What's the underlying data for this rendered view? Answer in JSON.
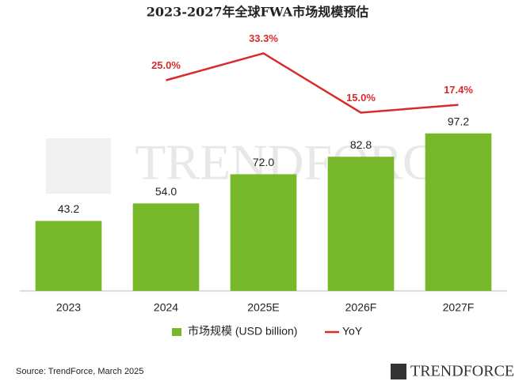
{
  "chart_data": {
    "type": "bar",
    "title": "2023-2027年全球FWA市场规模预估",
    "categories": [
      "2023",
      "2024",
      "2025E",
      "2026F",
      "2027F"
    ],
    "series": [
      {
        "name": "市场规模 (USD billion)",
        "color": "#76b82a",
        "values": [
          43.2,
          54.0,
          72.0,
          82.8,
          97.2
        ],
        "value_labels": [
          "43.2",
          "54.0",
          "72.0",
          "82.8",
          "97.2"
        ]
      },
      {
        "name": "YoY",
        "color": "#d92b2b",
        "axis": "y2",
        "type": "line",
        "values": [
          null,
          25.0,
          33.3,
          15.0,
          17.4
        ],
        "value_labels": [
          null,
          "25.0%",
          "33.3%",
          "15.0%",
          "17.4%"
        ]
      }
    ],
    "ylim": [
      0,
      160
    ],
    "y2lim": [
      -40,
      40
    ],
    "source": "Source: TrendForce, March 2025",
    "watermark": "TRENDFORCE",
    "logo": "TRENDFORCE"
  }
}
